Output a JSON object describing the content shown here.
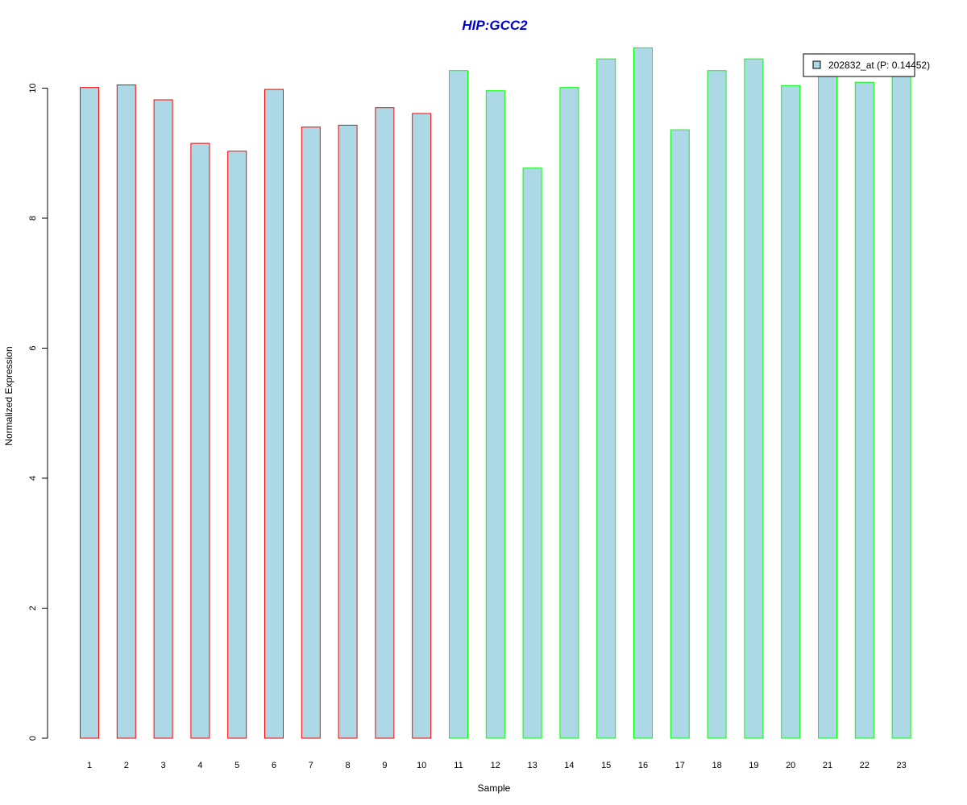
{
  "chart_data": {
    "type": "bar",
    "title": "HIP:GCC2",
    "xlabel": "Sample",
    "ylabel": "Normalized Expression",
    "categories": [
      "1",
      "2",
      "3",
      "4",
      "5",
      "6",
      "7",
      "8",
      "9",
      "10",
      "11",
      "12",
      "13",
      "14",
      "15",
      "16",
      "17",
      "18",
      "19",
      "20",
      "21",
      "22",
      "23"
    ],
    "series": [
      {
        "name": "202832_at (P: 0.14452)",
        "values": [
          10.01,
          10.05,
          9.82,
          9.15,
          9.03,
          9.98,
          9.4,
          9.43,
          9.7,
          9.61,
          10.27,
          9.96,
          8.77,
          10.01,
          10.45,
          10.62,
          9.36,
          10.27,
          10.45,
          10.04,
          10.25,
          10.09,
          10.27
        ]
      }
    ],
    "groups": [
      "red",
      "red",
      "red",
      "red",
      "red",
      "red",
      "red",
      "red",
      "red",
      "red",
      "green",
      "green",
      "green",
      "green",
      "green",
      "green",
      "green",
      "green",
      "green",
      "green",
      "green",
      "green",
      "green"
    ],
    "yticks": [
      0,
      2,
      4,
      6,
      8,
      10
    ],
    "ylim": [
      0,
      10.7
    ],
    "legend_position": "top-right",
    "grid": false
  },
  "colors": {
    "fill": "#ADD8E6",
    "red": "#FF0000",
    "green": "#00FF00",
    "title": "#0000CD"
  }
}
